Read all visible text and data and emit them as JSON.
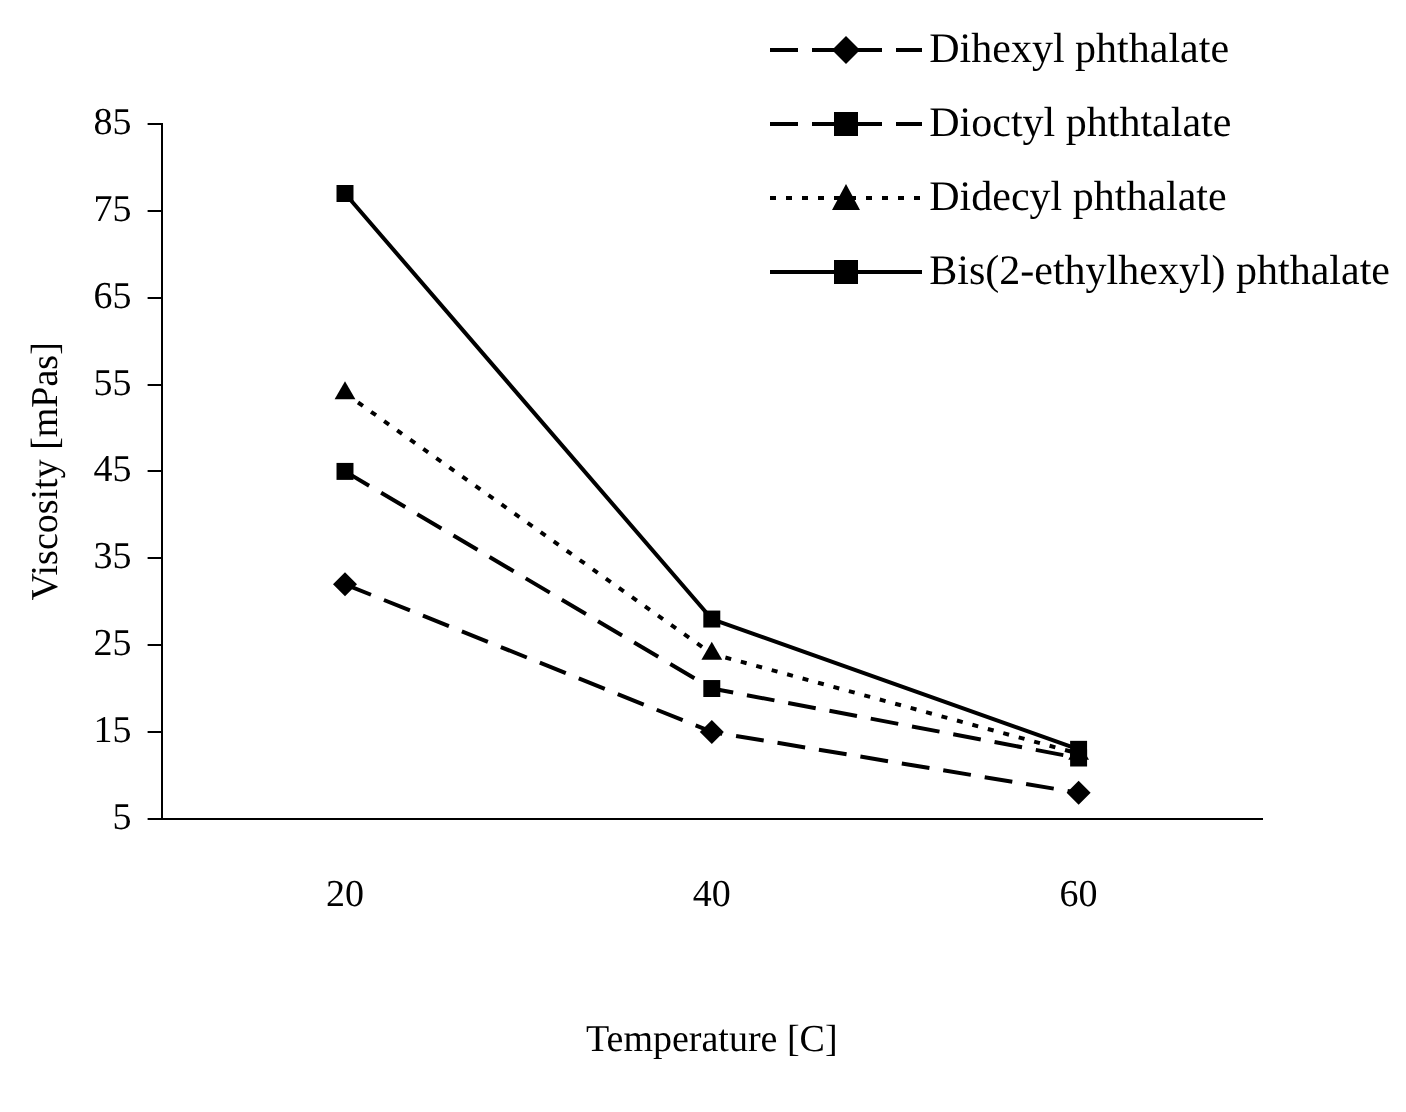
{
  "chart_data": {
    "type": "line",
    "xlabel": "Temperature [C]",
    "ylabel": "Viscosity [mPas]",
    "categories": [
      "20",
      "40",
      "60"
    ],
    "ylim": [
      5,
      85
    ],
    "yticks": [
      5,
      15,
      25,
      35,
      45,
      55,
      65,
      75,
      85
    ],
    "grid": false,
    "legend": "top right",
    "series": [
      {
        "name": "Dihexyl phthalate",
        "color": "#000000",
        "values": [
          32,
          15,
          8
        ],
        "marker": "diamond",
        "line_style": "dashed"
      },
      {
        "name": "Dioctyl phthtalate",
        "color": "#000000",
        "values": [
          45,
          20,
          12
        ],
        "marker": "square",
        "line_style": "dashed"
      },
      {
        "name": "Didecyl phthalate",
        "color": "#000000",
        "values": [
          54,
          24,
          12.5
        ],
        "marker": "triangle",
        "line_style": "dotted"
      },
      {
        "name": "Bis(2-ethylhexyl) phthalate",
        "color": "#000000",
        "values": [
          77,
          28,
          13
        ],
        "marker": "square",
        "line_style": "solid"
      }
    ]
  }
}
